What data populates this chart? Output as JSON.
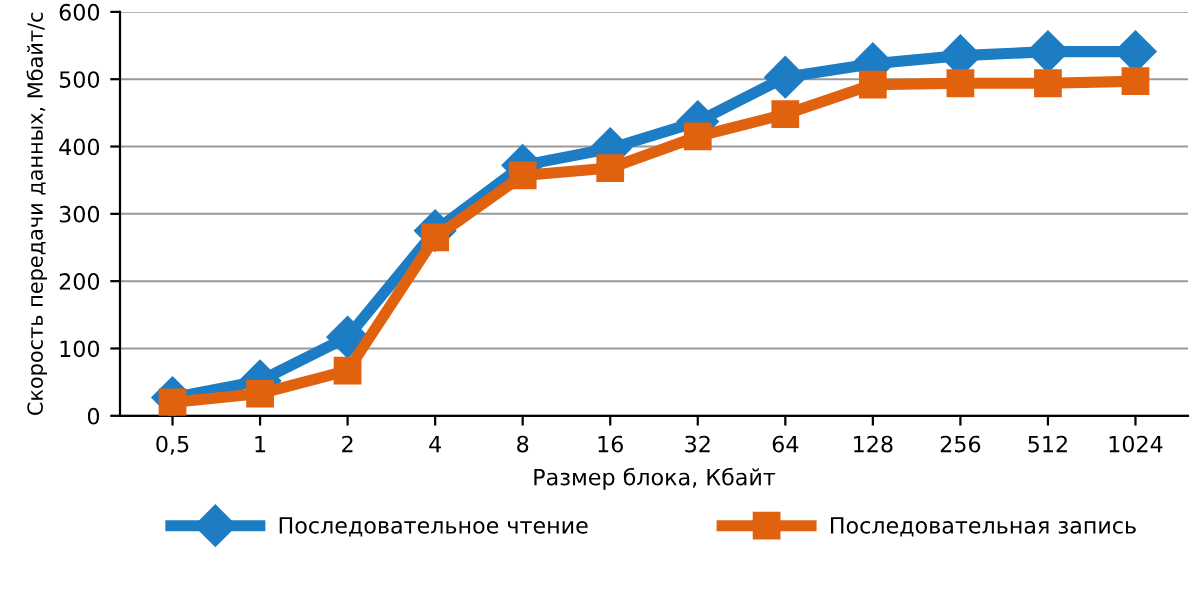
{
  "chart_data": {
    "type": "line",
    "xlabel": "Размер блока, Кбайт",
    "ylabel": "Скорость передачи данных, Мбайт/с",
    "categories": [
      "0,5",
      "1",
      "2",
      "4",
      "8",
      "16",
      "32",
      "64",
      "128",
      "256",
      "512",
      "1024"
    ],
    "series": [
      {
        "name": "Последовательное чтение",
        "color": "#1c7cc4",
        "marker": "diamond",
        "values": [
          27,
          52,
          117,
          275,
          372,
          397,
          437,
          503,
          523,
          535,
          541,
          541
        ]
      },
      {
        "name": "Последовательная запись",
        "color": "#e0620f",
        "marker": "square",
        "values": [
          20,
          33,
          67,
          265,
          357,
          368,
          415,
          448,
          492,
          494,
          494,
          497
        ]
      }
    ],
    "ylim": [
      0,
      600
    ],
    "yticks": [
      0,
      100,
      200,
      300,
      400,
      500,
      600
    ],
    "grid": "y",
    "legend": "bottom",
    "line_style": "solid"
  }
}
